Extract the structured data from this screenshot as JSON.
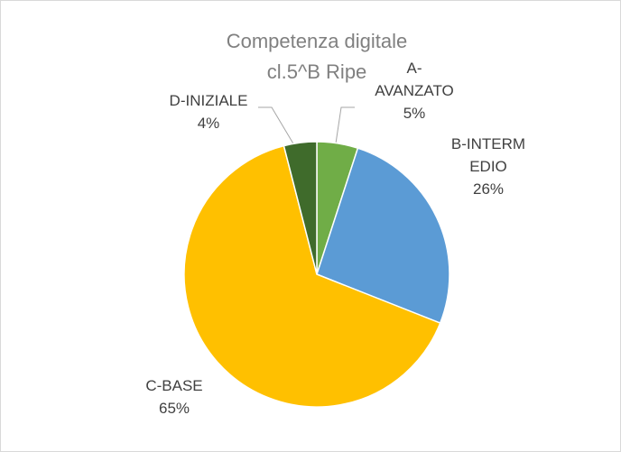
{
  "chart_data": {
    "type": "pie",
    "title": "Competenza digitale cl.5^B Ripe",
    "categories": [
      "A-AVANZATO",
      "B-INTERMEDIO",
      "C-BASE",
      "D-INIZIALE"
    ],
    "values": [
      5,
      26,
      65,
      4
    ],
    "value_labels": [
      "5%",
      "26%",
      "65%",
      "4%"
    ],
    "colors": [
      "#70ad47",
      "#5b9bd5",
      "#ffc000",
      "#3f6b2b"
    ]
  }
}
